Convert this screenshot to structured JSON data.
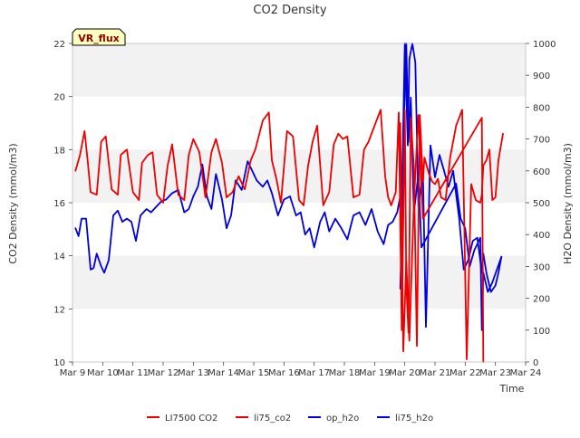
{
  "chart_data": {
    "type": "line",
    "title": "CO2 Density",
    "badge": "VR_flux",
    "xlabel": "Time",
    "ylabel_left": "CO2 Density (mmol/m3)",
    "ylabel_right": "H2O Density (mmol/m3)",
    "xlim": [
      9,
      24
    ],
    "ylim_left": [
      10,
      22
    ],
    "ylim_right": [
      0,
      1000
    ],
    "x_ticks": [
      9,
      10,
      11,
      12,
      13,
      14,
      15,
      16,
      17,
      18,
      19,
      20,
      21,
      22,
      23,
      24
    ],
    "x_tick_labels": [
      "Mar 9",
      "Mar 10",
      "Mar 11",
      "Mar 12",
      "Mar 13",
      "Mar 14",
      "Mar 15",
      "Mar 16",
      "Mar 17",
      "Mar 18",
      "Mar 19",
      "Mar 20",
      "Mar 21",
      "Mar 22",
      "Mar 23",
      "Mar 24"
    ],
    "y_left_ticks": [
      10,
      12,
      14,
      16,
      18,
      20,
      22
    ],
    "y_right_ticks": [
      0,
      100,
      200,
      300,
      400,
      500,
      600,
      700,
      800,
      900,
      1000
    ],
    "grid": "horizontal bands",
    "legend_position": "bottom",
    "colors": {
      "co2": "#ee0000",
      "h2o": "#0000dd",
      "band": "#f2f2f2",
      "badge_bg": "#ffffc0",
      "badge_text": "#8b0000"
    },
    "series": [
      {
        "name": "LI7500 CO2",
        "axis": "left",
        "color": "#ee0000",
        "x": [
          9.1,
          9.25,
          9.4,
          9.5,
          9.6,
          9.8,
          9.95,
          10.1,
          10.3,
          10.5,
          10.6,
          10.8,
          11.0,
          11.2,
          11.3,
          11.5,
          11.65,
          11.8,
          12.0,
          12.15,
          12.3,
          12.5,
          12.7,
          12.85,
          13.0,
          13.2,
          13.4,
          13.6,
          13.75,
          13.95,
          14.1,
          14.3,
          14.5,
          14.7,
          14.9,
          15.05,
          15.3,
          15.5,
          15.6,
          15.75,
          15.9,
          16.1,
          16.3,
          16.5,
          16.65,
          16.8,
          16.95,
          17.1,
          17.3,
          17.5,
          17.65,
          17.8,
          17.95,
          18.1,
          18.3,
          18.5,
          18.65,
          18.8,
          19.0,
          19.2,
          19.35,
          19.45,
          19.55,
          19.7,
          19.8,
          19.9,
          20.0,
          20.05,
          20.12,
          20.2,
          20.3,
          20.4,
          20.5,
          20.6,
          20.65,
          20.8,
          20.9,
          21.0,
          21.1,
          21.2,
          21.35,
          21.5,
          21.7,
          21.9,
          22.05,
          22.2,
          22.35,
          22.5,
          22.55,
          22.6,
          22.7,
          22.8,
          22.9,
          23.0,
          23.1,
          23.25
        ],
        "values": [
          17.2,
          17.8,
          18.7,
          17.6,
          16.4,
          16.3,
          18.3,
          18.5,
          16.5,
          16.3,
          17.8,
          18.0,
          16.4,
          16.1,
          17.5,
          17.8,
          17.9,
          16.3,
          16.0,
          17.4,
          18.2,
          16.3,
          16.1,
          17.8,
          18.4,
          17.9,
          16.2,
          17.9,
          18.4,
          17.5,
          16.2,
          16.4,
          17.0,
          16.5,
          17.6,
          18.0,
          19.1,
          19.4,
          17.6,
          16.9,
          16.0,
          18.7,
          18.5,
          16.1,
          15.9,
          17.4,
          18.3,
          18.9,
          15.9,
          16.4,
          18.2,
          18.6,
          18.4,
          18.5,
          16.2,
          16.3,
          18.0,
          18.3,
          18.9,
          19.5,
          17.0,
          16.2,
          15.9,
          16.4,
          19.4,
          11.2,
          19.5,
          13.0,
          11.1,
          19.2,
          17.3,
          10.6,
          19.3,
          16.8,
          17.7,
          17.1,
          16.8,
          16.7,
          16.9,
          16.2,
          16.1,
          17.7,
          18.9,
          19.5,
          10.1,
          16.7,
          16.1,
          16.0,
          16.3,
          17.4,
          17.6,
          18.0,
          16.1,
          16.2,
          17.6,
          18.6
        ]
      },
      {
        "name": "li75_co2",
        "axis": "left",
        "color": "#ee0000",
        "x": [
          19.85,
          19.95,
          20.05,
          20.15,
          20.3,
          20.45,
          20.6,
          22.55,
          22.6
        ],
        "values": [
          19.0,
          10.4,
          13.8,
          10.8,
          16.0,
          19.3,
          15.4,
          19.2,
          10.0
        ]
      },
      {
        "name": "op_h2o",
        "axis": "right",
        "color": "#0000dd",
        "x": [
          9.1,
          9.2,
          9.3,
          9.45,
          9.6,
          9.7,
          9.8,
          9.95,
          10.05,
          10.2,
          10.35,
          10.5,
          10.65,
          10.8,
          10.95,
          11.1,
          11.25,
          11.45,
          11.6,
          11.8,
          11.95,
          12.1,
          12.3,
          12.5,
          12.7,
          12.85,
          13.0,
          13.15,
          13.3,
          13.45,
          13.6,
          13.75,
          13.95,
          14.1,
          14.25,
          14.4,
          14.6,
          14.8,
          14.95,
          15.1,
          15.3,
          15.45,
          15.6,
          15.8,
          16.0,
          16.2,
          16.4,
          16.55,
          16.7,
          16.85,
          17.0,
          17.2,
          17.35,
          17.5,
          17.7,
          17.9,
          18.1,
          18.3,
          18.5,
          18.7,
          18.9,
          19.1,
          19.3,
          19.45,
          19.6,
          19.75,
          19.85,
          19.9,
          20.0,
          20.1,
          20.15,
          20.25,
          20.35,
          20.45,
          20.6,
          20.7,
          20.85,
          21.0,
          21.15,
          21.3,
          21.45,
          21.6,
          21.8,
          21.95,
          22.1,
          22.25,
          22.4,
          22.55,
          22.6,
          22.7,
          22.85,
          23.0,
          23.1,
          23.2
        ],
        "values": [
          420,
          395,
          450,
          450,
          290,
          295,
          340,
          300,
          280,
          320,
          460,
          475,
          440,
          450,
          440,
          380,
          460,
          480,
          470,
          490,
          505,
          510,
          530,
          540,
          470,
          480,
          520,
          550,
          620,
          520,
          480,
          590,
          510,
          420,
          460,
          570,
          540,
          630,
          600,
          570,
          550,
          570,
          530,
          460,
          510,
          520,
          460,
          470,
          400,
          420,
          360,
          440,
          470,
          410,
          450,
          420,
          385,
          460,
          470,
          430,
          480,
          410,
          370,
          430,
          440,
          470,
          520,
          490,
          1000,
          680,
          950,
          1000,
          940,
          490,
          590,
          110,
          680,
          580,
          650,
          600,
          550,
          600,
          450,
          290,
          320,
          380,
          390,
          280,
          340,
          280,
          220,
          240,
          280,
          330
        ]
      },
      {
        "name": "li75_h2o",
        "axis": "right",
        "color": "#0000dd",
        "x": [
          19.85,
          19.92,
          20.0,
          20.05,
          20.12,
          20.2,
          20.3,
          20.45,
          20.55,
          21.7,
          21.85,
          22.0,
          22.15,
          22.3,
          22.5,
          22.55,
          22.6,
          22.75,
          22.9,
          23.05,
          23.2
        ],
        "values": [
          230,
          500,
          880,
          1000,
          690,
          830,
          470,
          590,
          360,
          560,
          450,
          420,
          300,
          350,
          390,
          100,
          280,
          220,
          250,
          290,
          330
        ]
      }
    ]
  }
}
